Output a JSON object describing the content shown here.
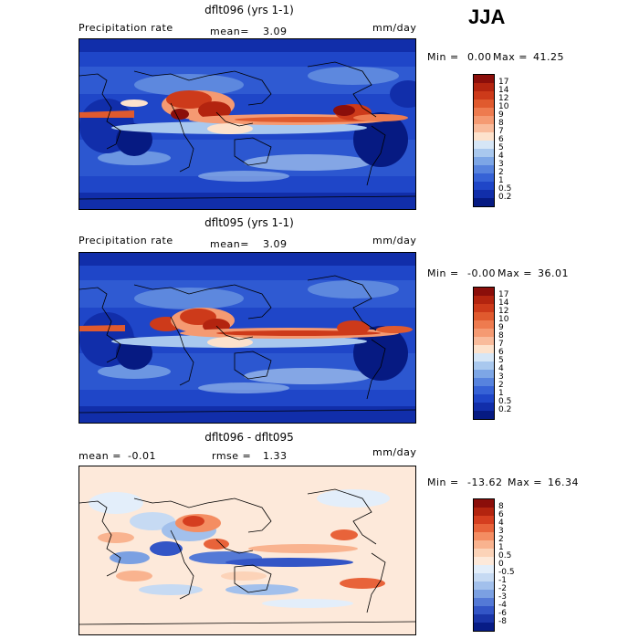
{
  "season": "JJA",
  "panels": [
    {
      "title": "dflt096 (yrs 1-1)",
      "left_label": "Precipitation rate",
      "mean_label": "mean=",
      "mean_value": "3.09",
      "units": "mm/day",
      "min_label": "Min =",
      "min_value": "0.00",
      "max_label": "Max =",
      "max_value": "41.25",
      "colorbar_ticks": [
        "17",
        "14",
        "12",
        "10",
        "9",
        "8",
        "7",
        "6",
        "5",
        "4",
        "3",
        "2",
        "1",
        "0.5",
        "0.2"
      ],
      "colorbar_colors": [
        "#8b0e0a",
        "#b3240f",
        "#cd3a1a",
        "#e05a2e",
        "#ee7b4f",
        "#f59a72",
        "#f9bb9b",
        "#fde2cc",
        "#d6e6f6",
        "#a9c8ee",
        "#7da6e6",
        "#5783de",
        "#3662d6",
        "#1f46c8",
        "#112eaa",
        "#061a82"
      ]
    },
    {
      "title": "dflt095 (yrs 1-1)",
      "left_label": "Precipitation rate",
      "mean_label": "mean=",
      "mean_value": "3.09",
      "units": "mm/day",
      "min_label": "Min =",
      "min_value": "-0.00",
      "max_label": "Max =",
      "max_value": "36.01",
      "colorbar_ticks": [
        "17",
        "14",
        "12",
        "10",
        "9",
        "8",
        "7",
        "6",
        "5",
        "4",
        "3",
        "2",
        "1",
        "0.5",
        "0.2"
      ],
      "colorbar_colors": [
        "#8b0e0a",
        "#b3240f",
        "#cd3a1a",
        "#e05a2e",
        "#ee7b4f",
        "#f59a72",
        "#f9bb9b",
        "#fde2cc",
        "#d6e6f6",
        "#a9c8ee",
        "#7da6e6",
        "#5783de",
        "#3662d6",
        "#1f46c8",
        "#112eaa",
        "#061a82"
      ]
    },
    {
      "title": "dflt096 - dflt095",
      "mean_label": "mean =",
      "mean_value": "-0.01",
      "rmse_label": "rmse =",
      "rmse_value": "1.33",
      "units": "mm/day",
      "min_label": "Min =",
      "min_value": "-13.62",
      "max_label": "Max =",
      "max_value": "16.34",
      "colorbar_ticks": [
        "8",
        "6",
        "4",
        "3",
        "2",
        "1",
        "0.5",
        "0",
        "-0.5",
        "-1",
        "-2",
        "-3",
        "-4",
        "-6",
        "-8"
      ],
      "colorbar_colors": [
        "#8b0e0a",
        "#b3240f",
        "#d53e1f",
        "#e8633a",
        "#f48d62",
        "#f9b38f",
        "#fcd3b8",
        "#fde9da",
        "#e3eefa",
        "#c6daf3",
        "#a2c0ec",
        "#7ba0e2",
        "#5479d6",
        "#3355c6",
        "#1a35a8",
        "#071c86"
      ]
    }
  ]
}
